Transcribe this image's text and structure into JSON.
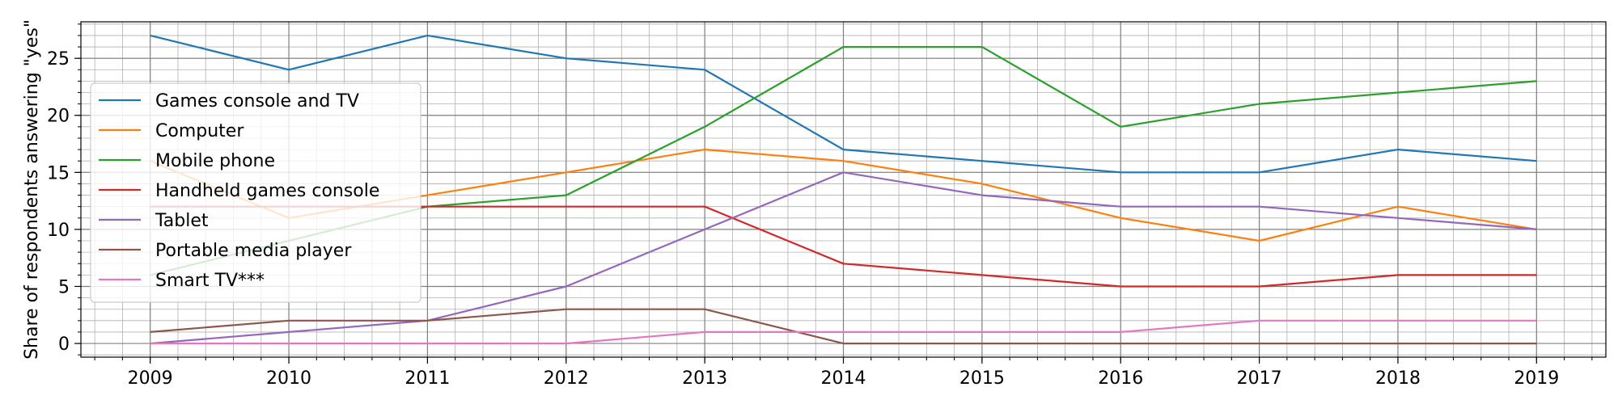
{
  "chart_data": {
    "type": "line",
    "title": "",
    "xlabel": "",
    "ylabel": "Share of respondents answering \"yes\"",
    "x": [
      2009,
      2010,
      2011,
      2012,
      2013,
      2014,
      2015,
      2016,
      2017,
      2018,
      2019
    ],
    "xlim": [
      2008.5,
      2019.5
    ],
    "ylim": [
      -1.2,
      28.2
    ],
    "x_ticks": [
      2009,
      2010,
      2011,
      2012,
      2013,
      2014,
      2015,
      2016,
      2017,
      2018,
      2019
    ],
    "y_ticks": [
      0,
      5,
      10,
      15,
      20,
      25
    ],
    "grid": true,
    "minor_grid": true,
    "legend_position": "left",
    "series": [
      {
        "name": "Games console and TV",
        "color": "#1f77b4",
        "values": [
          27,
          24,
          27,
          25,
          24,
          17,
          16,
          15,
          15,
          17,
          16
        ]
      },
      {
        "name": "Computer",
        "color": "#ff7f0e",
        "values": [
          16,
          11,
          13,
          15,
          17,
          16,
          14,
          11,
          9,
          12,
          10
        ]
      },
      {
        "name": "Mobile phone",
        "color": "#2ca02c",
        "values": [
          6,
          9,
          12,
          13,
          19,
          26,
          26,
          19,
          21,
          22,
          23
        ]
      },
      {
        "name": "Handheld games console",
        "color": "#d62728",
        "values": [
          12,
          12,
          12,
          12,
          12,
          7,
          6,
          5,
          5,
          6,
          6
        ]
      },
      {
        "name": "Tablet",
        "color": "#9467bd",
        "values": [
          0,
          1,
          2,
          5,
          10,
          15,
          13,
          12,
          12,
          11,
          10
        ]
      },
      {
        "name": "Portable media player",
        "color": "#8c564b",
        "values": [
          1,
          2,
          2,
          3,
          3,
          0,
          0,
          0,
          0,
          0,
          0
        ]
      },
      {
        "name": "Smart TV***",
        "color": "#e377c2",
        "values": [
          0,
          0,
          0,
          0,
          1,
          1,
          1,
          1,
          2,
          2,
          2
        ]
      }
    ]
  }
}
